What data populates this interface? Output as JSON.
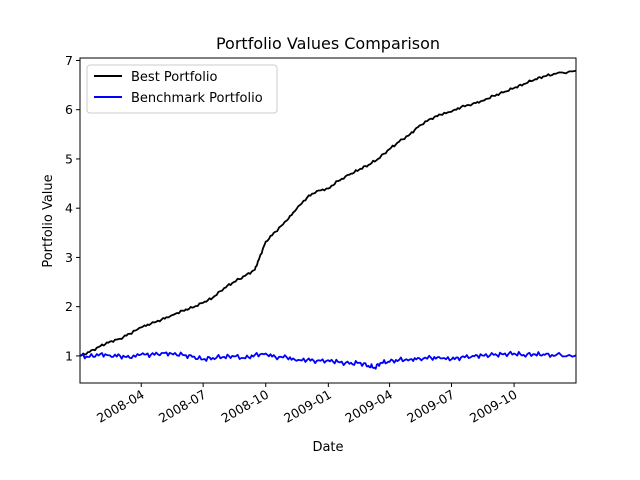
{
  "chart_data": {
    "type": "line",
    "title": "Portfolio Values Comparison",
    "xlabel": "Date",
    "ylabel": "Portfolio Value",
    "xlim": [
      "2008-01-02",
      "2009-12-31"
    ],
    "ylim": [
      0.45,
      7.05
    ],
    "yticks": [
      1,
      2,
      3,
      4,
      5,
      6,
      7
    ],
    "xticks": [
      "2008-04-01",
      "2008-07-01",
      "2008-10-01",
      "2009-01-01",
      "2009-04-01",
      "2009-07-01",
      "2009-10-01"
    ],
    "xtick_labels": [
      "2008-04",
      "2008-07",
      "2008-10",
      "2009-01",
      "2009-04",
      "2009-07",
      "2009-10"
    ],
    "grid": false,
    "legend": "upper left",
    "series": [
      {
        "name": "Best Portfolio",
        "color": "#000000",
        "points": [
          [
            "2008-01-02",
            1.0
          ],
          [
            "2008-01-16",
            1.08
          ],
          [
            "2008-02-01",
            1.2
          ],
          [
            "2008-02-15",
            1.29
          ],
          [
            "2008-03-01",
            1.35
          ],
          [
            "2008-03-15",
            1.45
          ],
          [
            "2008-04-01",
            1.58
          ],
          [
            "2008-04-15",
            1.65
          ],
          [
            "2008-05-01",
            1.74
          ],
          [
            "2008-05-15",
            1.82
          ],
          [
            "2008-06-01",
            1.92
          ],
          [
            "2008-06-15",
            1.98
          ],
          [
            "2008-07-01",
            2.08
          ],
          [
            "2008-07-15",
            2.18
          ],
          [
            "2008-08-01",
            2.38
          ],
          [
            "2008-08-15",
            2.5
          ],
          [
            "2008-09-01",
            2.63
          ],
          [
            "2008-09-15",
            2.75
          ],
          [
            "2008-09-22",
            3.0
          ],
          [
            "2008-10-01",
            3.32
          ],
          [
            "2008-10-15",
            3.52
          ],
          [
            "2008-11-01",
            3.75
          ],
          [
            "2008-11-15",
            3.98
          ],
          [
            "2008-12-01",
            4.22
          ],
          [
            "2008-12-15",
            4.35
          ],
          [
            "2009-01-01",
            4.4
          ],
          [
            "2009-01-15",
            4.55
          ],
          [
            "2009-02-01",
            4.68
          ],
          [
            "2009-02-15",
            4.78
          ],
          [
            "2009-03-01",
            4.88
          ],
          [
            "2009-03-15",
            5.0
          ],
          [
            "2009-04-01",
            5.2
          ],
          [
            "2009-04-15",
            5.35
          ],
          [
            "2009-05-01",
            5.5
          ],
          [
            "2009-05-15",
            5.68
          ],
          [
            "2009-06-01",
            5.82
          ],
          [
            "2009-06-15",
            5.9
          ],
          [
            "2009-07-01",
            5.96
          ],
          [
            "2009-07-15",
            6.05
          ],
          [
            "2009-08-01",
            6.12
          ],
          [
            "2009-08-15",
            6.18
          ],
          [
            "2009-09-01",
            6.28
          ],
          [
            "2009-09-15",
            6.35
          ],
          [
            "2009-10-01",
            6.44
          ],
          [
            "2009-10-15",
            6.52
          ],
          [
            "2009-11-01",
            6.62
          ],
          [
            "2009-11-15",
            6.68
          ],
          [
            "2009-12-01",
            6.73
          ],
          [
            "2009-12-31",
            6.79
          ]
        ]
      },
      {
        "name": "Benchmark Portfolio",
        "color": "#0000ff",
        "points": [
          [
            "2008-01-02",
            1.0
          ],
          [
            "2008-01-16",
            0.98
          ],
          [
            "2008-02-01",
            1.04
          ],
          [
            "2008-02-15",
            1.01
          ],
          [
            "2008-03-01",
            1.0
          ],
          [
            "2008-03-15",
            0.96
          ],
          [
            "2008-04-01",
            1.03
          ],
          [
            "2008-04-15",
            1.02
          ],
          [
            "2008-05-01",
            1.06
          ],
          [
            "2008-05-15",
            1.05
          ],
          [
            "2008-06-01",
            1.02
          ],
          [
            "2008-06-15",
            0.98
          ],
          [
            "2008-07-01",
            0.93
          ],
          [
            "2008-07-15",
            0.96
          ],
          [
            "2008-08-01",
            0.98
          ],
          [
            "2008-08-15",
            0.99
          ],
          [
            "2008-09-01",
            0.95
          ],
          [
            "2008-09-15",
            1.02
          ],
          [
            "2008-10-01",
            1.05
          ],
          [
            "2008-10-15",
            0.98
          ],
          [
            "2008-11-01",
            0.97
          ],
          [
            "2008-11-15",
            0.9
          ],
          [
            "2008-12-01",
            0.92
          ],
          [
            "2008-12-15",
            0.9
          ],
          [
            "2009-01-01",
            0.91
          ],
          [
            "2009-01-15",
            0.88
          ],
          [
            "2009-02-01",
            0.84
          ],
          [
            "2009-02-15",
            0.86
          ],
          [
            "2009-03-01",
            0.8
          ],
          [
            "2009-03-10",
            0.76
          ],
          [
            "2009-03-20",
            0.86
          ],
          [
            "2009-04-01",
            0.88
          ],
          [
            "2009-04-15",
            0.92
          ],
          [
            "2009-05-01",
            0.93
          ],
          [
            "2009-05-15",
            0.95
          ],
          [
            "2009-06-01",
            0.96
          ],
          [
            "2009-06-15",
            0.95
          ],
          [
            "2009-07-01",
            0.93
          ],
          [
            "2009-07-15",
            0.97
          ],
          [
            "2009-08-01",
            1.0
          ],
          [
            "2009-08-15",
            1.01
          ],
          [
            "2009-09-01",
            1.02
          ],
          [
            "2009-09-15",
            1.03
          ],
          [
            "2009-10-01",
            1.05
          ],
          [
            "2009-10-15",
            1.02
          ],
          [
            "2009-11-01",
            1.03
          ],
          [
            "2009-11-15",
            1.02
          ],
          [
            "2009-12-01",
            1.01
          ],
          [
            "2009-12-31",
            1.01
          ]
        ]
      }
    ]
  }
}
